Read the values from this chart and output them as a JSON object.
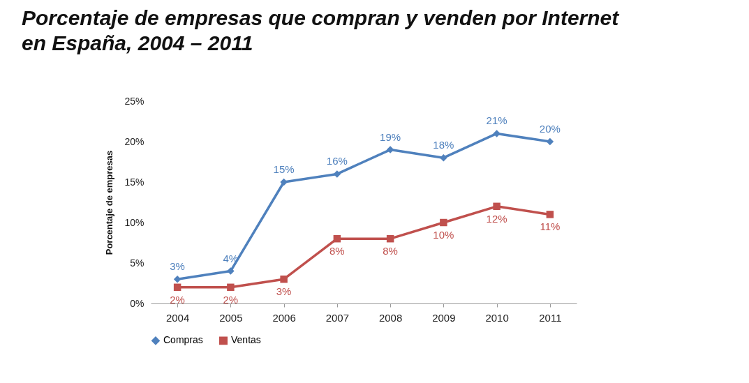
{
  "chart_data": {
    "type": "line",
    "title": "Porcentaje de empresas que compran y venden por Internet\nen España, 2004 – 2011",
    "ylabel": "Porcentaje de empresas",
    "categories": [
      "2004",
      "2005",
      "2006",
      "2007",
      "2008",
      "2009",
      "2010",
      "2011"
    ],
    "series": [
      {
        "name": "Compras",
        "color": "#4f81bd",
        "marker": "diamond",
        "values": [
          3,
          4,
          15,
          16,
          19,
          18,
          21,
          20
        ],
        "value_labels": [
          "3%",
          "4%",
          "15%",
          "16%",
          "19%",
          "18%",
          "21%",
          "20%"
        ]
      },
      {
        "name": "Ventas",
        "color": "#c0504d",
        "marker": "square",
        "values": [
          2,
          2,
          3,
          8,
          8,
          10,
          12,
          11
        ],
        "value_labels": [
          "2%",
          "2%",
          "3%",
          "8%",
          "8%",
          "10%",
          "12%",
          "11%"
        ]
      }
    ],
    "ylim": [
      0,
      25
    ],
    "yticks": [
      {
        "value": 0,
        "label": "0%"
      },
      {
        "value": 5,
        "label": "5%"
      },
      {
        "value": 10,
        "label": "10%"
      },
      {
        "value": 15,
        "label": "15%"
      },
      {
        "value": 20,
        "label": "20%"
      },
      {
        "value": 25,
        "label": "25%"
      }
    ],
    "grid": false,
    "legend": "bottom"
  }
}
